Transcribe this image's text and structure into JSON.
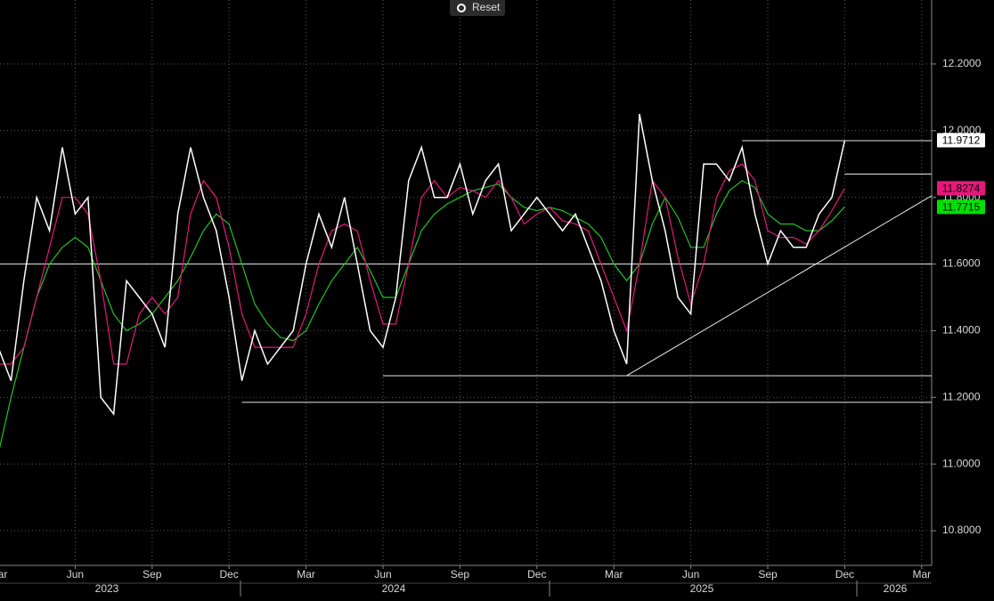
{
  "ui": {
    "reset": "Reset"
  },
  "chart_data": {
    "type": "line",
    "categories": [
      "Mar",
      null,
      null,
      null,
      null,
      null,
      "Jun",
      null,
      null,
      null,
      null,
      null,
      "Sep",
      null,
      null,
      null,
      null,
      null,
      "Dec",
      null,
      null,
      null,
      null,
      null,
      "Mar",
      null,
      null,
      null,
      null,
      null,
      "Jun",
      null,
      null,
      null,
      null,
      null,
      "Sep",
      null,
      null,
      null,
      null,
      null,
      "Dec",
      null,
      null,
      null,
      null,
      null,
      "Mar",
      null,
      null,
      null,
      null,
      null,
      "Jun",
      null,
      null,
      null,
      null,
      null,
      "Sep",
      null,
      null,
      null,
      null,
      null,
      "Dec",
      null,
      null,
      null,
      null,
      null,
      "Mar"
    ],
    "years": [
      "2023",
      "2024",
      "2025",
      "2026"
    ],
    "series": [
      {
        "color": "#ffffff",
        "values": [
          11.35,
          11.25,
          11.55,
          11.8,
          11.7,
          11.95,
          11.75,
          11.8,
          11.2,
          11.15,
          11.55,
          11.5,
          11.45,
          11.35,
          11.75,
          11.95,
          11.8,
          11.7,
          11.5,
          11.25,
          11.4,
          11.3,
          11.35,
          11.4,
          11.6,
          11.75,
          11.65,
          11.8,
          11.6,
          11.4,
          11.35,
          11.5,
          11.85,
          11.95,
          11.8,
          11.8,
          11.9,
          11.75,
          11.85,
          11.9,
          11.7,
          11.75,
          11.8,
          11.75,
          11.7,
          11.75,
          11.65,
          11.55,
          11.4,
          11.3,
          12.05,
          11.85,
          11.7,
          11.5,
          11.45,
          11.9,
          11.9,
          11.85,
          11.95,
          11.75,
          11.6,
          11.7,
          11.65,
          11.65,
          11.75,
          11.8,
          11.9712,
          null,
          null,
          null,
          null,
          null,
          null
        ],
        "tag_color": "#ffffff",
        "tag_text": "#000000"
      },
      {
        "color": "#e8177d",
        "values": [
          11.3,
          11.3,
          11.35,
          11.5,
          11.65,
          11.8,
          11.8,
          11.75,
          11.55,
          11.3,
          11.3,
          11.45,
          11.5,
          11.45,
          11.5,
          11.75,
          11.85,
          11.8,
          11.65,
          11.45,
          11.35,
          11.35,
          11.35,
          11.35,
          11.45,
          11.6,
          11.7,
          11.72,
          11.7,
          11.55,
          11.42,
          11.42,
          11.6,
          11.8,
          11.85,
          11.8,
          11.83,
          11.82,
          11.8,
          11.85,
          11.8,
          11.72,
          11.75,
          11.77,
          11.73,
          11.72,
          11.7,
          11.6,
          11.5,
          11.4,
          11.6,
          11.85,
          11.8,
          11.62,
          11.48,
          11.6,
          11.8,
          11.88,
          11.9,
          11.85,
          11.7,
          11.68,
          11.68,
          11.66,
          11.7,
          11.76,
          11.8274,
          null,
          null,
          null,
          null,
          null,
          null
        ],
        "tag_color": "#e8177d",
        "tag_text": "#000000"
      },
      {
        "color": "#22c322",
        "values": [
          11.03,
          11.2,
          11.35,
          11.5,
          11.6,
          11.65,
          11.68,
          11.65,
          11.55,
          11.45,
          11.4,
          11.42,
          11.45,
          11.5,
          11.55,
          11.62,
          11.7,
          11.75,
          11.72,
          11.6,
          11.48,
          11.42,
          11.38,
          11.37,
          11.4,
          11.48,
          11.55,
          11.6,
          11.65,
          11.58,
          11.5,
          11.5,
          11.6,
          11.7,
          11.75,
          11.78,
          11.8,
          11.82,
          11.83,
          11.84,
          11.8,
          11.77,
          11.76,
          11.77,
          11.76,
          11.74,
          11.72,
          11.68,
          11.6,
          11.55,
          11.6,
          11.72,
          11.8,
          11.74,
          11.65,
          11.65,
          11.75,
          11.82,
          11.85,
          11.83,
          11.75,
          11.72,
          11.72,
          11.7,
          11.7,
          11.73,
          11.7715,
          null,
          null,
          null,
          null,
          null,
          null
        ],
        "tag_color": "#00e000",
        "tag_text": "#000000"
      }
    ],
    "levels": [
      {
        "value": 11.6,
        "from": 0
      },
      {
        "value": 11.185,
        "from": 19
      },
      {
        "value": 11.265,
        "from": 30
      },
      {
        "value": 11.97,
        "from": 58
      },
      {
        "value": 11.87,
        "from": 66
      }
    ],
    "trendline": {
      "from": [
        49,
        11.265
      ],
      "to": [
        73,
        11.81
      ]
    },
    "ylim": [
      10.696,
      12.392
    ],
    "yticks": [
      {
        "value": 10.8,
        "label": "10.8000"
      },
      {
        "value": 11.0,
        "label": "11.0000"
      },
      {
        "value": 11.2,
        "label": "11.2000"
      },
      {
        "value": 11.4,
        "label": "11.4000"
      },
      {
        "value": 11.6,
        "label": "11.6000"
      },
      {
        "value": 11.8,
        "label": "11.8000"
      },
      {
        "value": 12.0,
        "label": "12.0000"
      },
      {
        "value": 12.2,
        "label": "12.2000"
      }
    ],
    "grid": true
  }
}
